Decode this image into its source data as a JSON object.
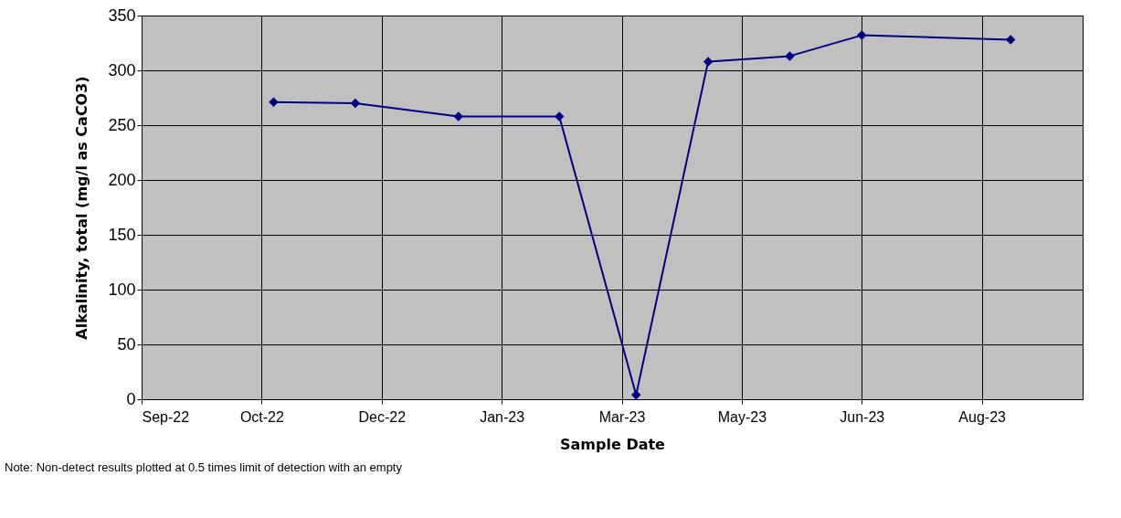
{
  "chart_data": {
    "type": "line",
    "xlabel": "Sample Date",
    "ylabel": "Alkalinity, total (mg/l as CaCO3)",
    "x": [
      "2022-10-26",
      "2022-11-29",
      "2023-01-11",
      "2023-02-22",
      "2023-03-26",
      "2023-04-25",
      "2023-05-29",
      "2023-06-28",
      "2023-08-29"
    ],
    "series": [
      {
        "color": "#000080",
        "values": [
          271,
          270,
          258,
          258,
          4,
          308,
          313,
          332,
          328
        ]
      }
    ],
    "xlim": [
      "2022-09-01",
      "2023-09-28"
    ],
    "xticks": [
      {
        "value": "2022-09-01",
        "label": "Sep-22"
      },
      {
        "value": "2022-10-21",
        "label": "Oct-22"
      },
      {
        "value": "2022-12-10",
        "label": "Dec-22"
      },
      {
        "value": "2023-01-29",
        "label": "Jan-23"
      },
      {
        "value": "2023-03-20",
        "label": "Mar-23"
      },
      {
        "value": "2023-05-09",
        "label": "May-23"
      },
      {
        "value": "2023-06-28",
        "label": "Jun-23"
      },
      {
        "value": "2023-08-17",
        "label": "Aug-23"
      }
    ],
    "ylim": [
      0,
      350
    ],
    "yticks": [
      0,
      50,
      100,
      150,
      200,
      250,
      300,
      350
    ],
    "grid": true,
    "marker": "diamond",
    "line_style": "solid",
    "annotations": [
      "Note: Non-detect results plotted at 0.5 times limit of detection with an empty"
    ]
  }
}
